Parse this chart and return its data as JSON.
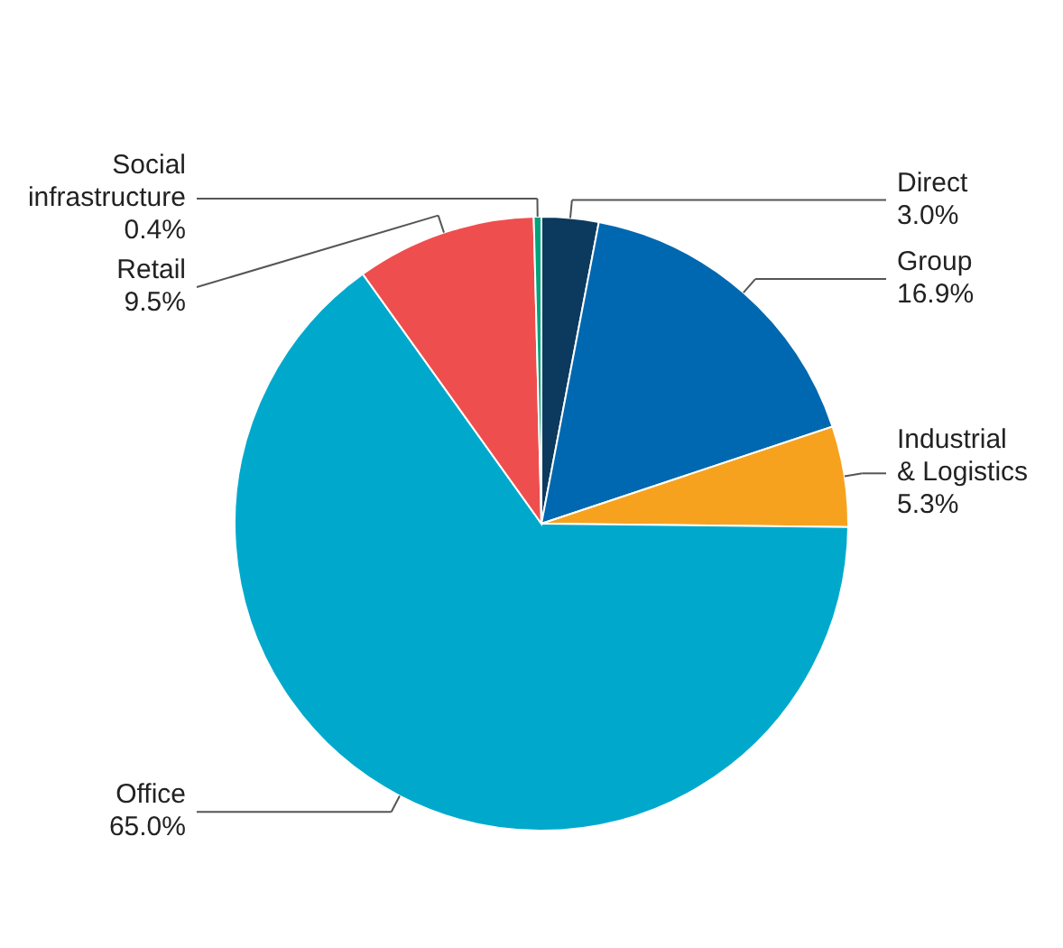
{
  "chart_data": {
    "type": "pie",
    "categories": [
      "Direct",
      "Group",
      "Industrial & Logistics",
      "Office",
      "Retail",
      "Social infrastructure"
    ],
    "values": [
      3.0,
      16.9,
      5.3,
      65.0,
      9.5,
      0.4
    ],
    "colors": [
      "#0b3a5e",
      "#0068b0",
      "#f7a21e",
      "#00a9cc",
      "#ef4e4e",
      "#00a37a"
    ],
    "value_labels": [
      "3.0%",
      "16.9%",
      "5.3%",
      "65.0%",
      "9.5%",
      "0.4%"
    ]
  }
}
